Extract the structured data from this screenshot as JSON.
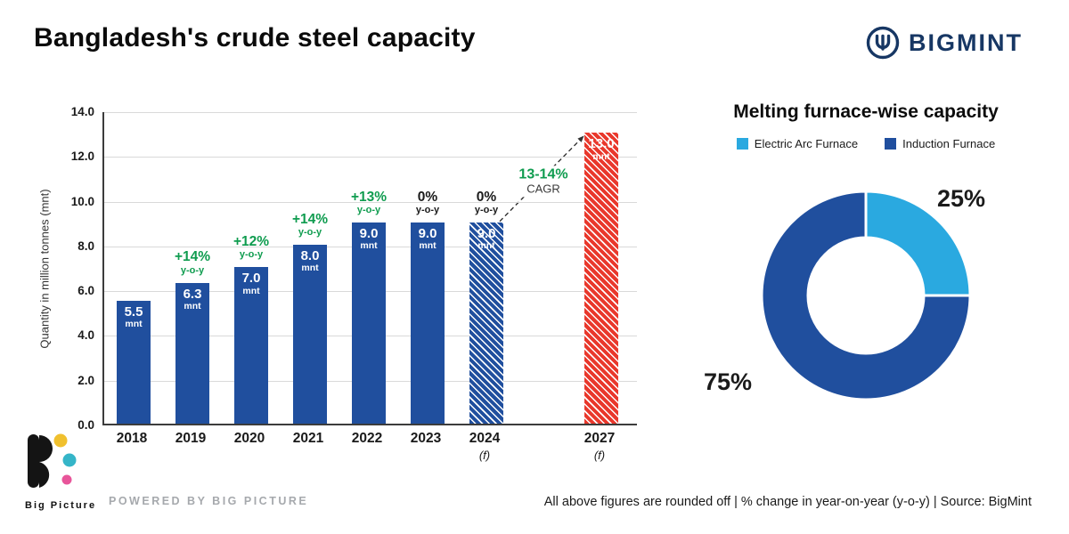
{
  "header": {
    "title": "Bangladesh's crude steel capacity",
    "brand": "BIGMINT"
  },
  "chart_data": [
    {
      "type": "bar",
      "title": "Bangladesh's crude steel capacity",
      "ylabel": "Quantity in million tonnes (mnt)",
      "ylim": [
        0,
        14
      ],
      "ytick_step": 2,
      "unit": "mnt",
      "grid": true,
      "categories": [
        "2018",
        "2019",
        "2020",
        "2021",
        "2022",
        "2023",
        "2024 (f)",
        "2027 (f)"
      ],
      "bars": [
        {
          "year": "2018",
          "suffix": "",
          "value": 5.5,
          "label": "5.5",
          "pct": "",
          "pct_sub": "",
          "pct_color": "",
          "color": "#204f9e",
          "hatch": false
        },
        {
          "year": "2019",
          "suffix": "",
          "value": 6.3,
          "label": "6.3",
          "pct": "+14%",
          "pct_sub": "y-o-y",
          "pct_color": "#0f9c4f",
          "color": "#204f9e",
          "hatch": false
        },
        {
          "year": "2020",
          "suffix": "",
          "value": 7.0,
          "label": "7.0",
          "pct": "+12%",
          "pct_sub": "y-o-y",
          "pct_color": "#0f9c4f",
          "color": "#204f9e",
          "hatch": false
        },
        {
          "year": "2021",
          "suffix": "",
          "value": 8.0,
          "label": "8.0",
          "pct": "+14%",
          "pct_sub": "y-o-y",
          "pct_color": "#0f9c4f",
          "color": "#204f9e",
          "hatch": false
        },
        {
          "year": "2022",
          "suffix": "",
          "value": 9.0,
          "label": "9.0",
          "pct": "+13%",
          "pct_sub": "y-o-y",
          "pct_color": "#0f9c4f",
          "color": "#204f9e",
          "hatch": false
        },
        {
          "year": "2023",
          "suffix": "",
          "value": 9.0,
          "label": "9.0",
          "pct": "0%",
          "pct_sub": "y-o-y",
          "pct_color": "#1a1a1a",
          "color": "#204f9e",
          "hatch": false
        },
        {
          "year": "2024",
          "suffix": "(f)",
          "value": 9.0,
          "label": "9.0",
          "pct": "0%",
          "pct_sub": "y-o-y",
          "pct_color": "#1a1a1a",
          "color": "#204f9e",
          "hatch": true
        },
        {
          "year": "2027",
          "suffix": "(f)",
          "value": 13.0,
          "label": "13.0",
          "pct": "",
          "pct_sub": "",
          "pct_color": "",
          "color": "#e9382c",
          "hatch": true
        }
      ],
      "annotation": {
        "label": "13-14%",
        "sub": "CAGR",
        "color": "#0f9c4f"
      }
    },
    {
      "type": "pie",
      "subtype": "donut",
      "title": "Melting furnace-wise capacity",
      "legend_position": "top",
      "slices": [
        {
          "label": "Electric Arc Furnace",
          "value": 25,
          "display": "25%",
          "color": "#2aa9e0"
        },
        {
          "label": "Induction Furnace",
          "value": 75,
          "display": "75%",
          "color": "#204f9e"
        }
      ]
    }
  ],
  "footer": {
    "note": "All above figures are rounded off  |  % change in year-on-year (y-o-y)  |  Source: BigMint",
    "powered_by": "POWERED BY BIG PICTURE",
    "logo_text": "Big Picture"
  }
}
